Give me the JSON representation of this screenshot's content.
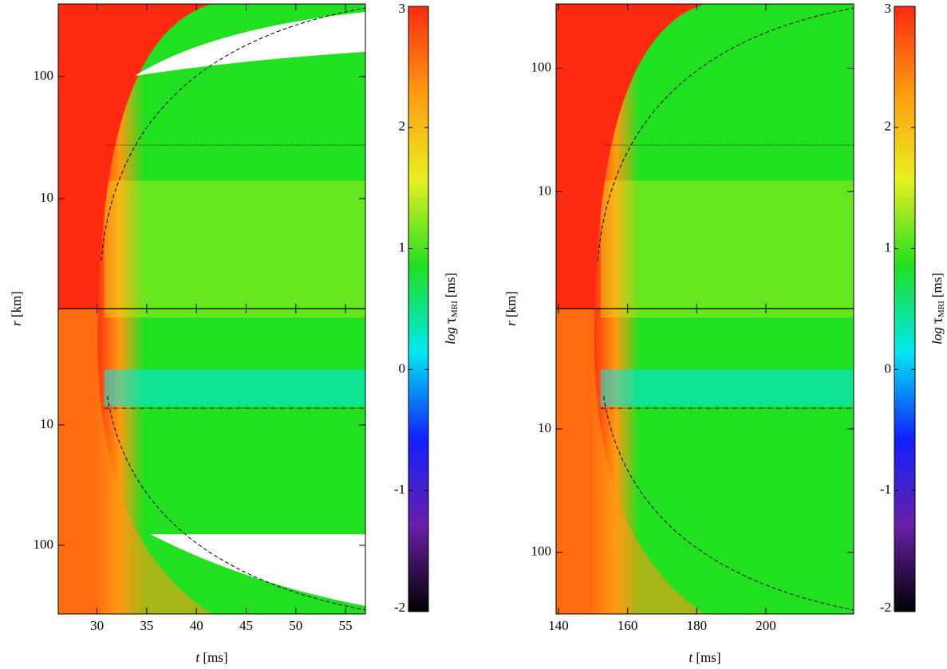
{
  "chart_data": [
    {
      "type": "heatmap",
      "xlabel": {
        "symbol": "t",
        "unit": "[ms]"
      },
      "ylabel": {
        "symbol": "r",
        "unit": "[km]"
      },
      "xlim": [
        26.1,
        57.0
      ],
      "xticks": [
        30,
        35,
        40,
        45,
        50,
        55
      ],
      "panels": [
        {
          "position": "top",
          "ylim": [
            1.25,
            394
          ],
          "yticks": [
            10,
            100
          ],
          "ylog": true
        },
        {
          "position": "bottom",
          "ylim": [
            1.08,
            372
          ],
          "yticks": [
            10,
            100
          ],
          "ylog": true
        }
      ],
      "colorbar": {
        "label": {
          "prefix": "log",
          "symbol": "τ",
          "subscript": "MRI",
          "unit": "[ms]"
        },
        "clim": [
          -2,
          3
        ],
        "ticks": [
          -2,
          -1,
          0,
          1,
          2,
          3
        ],
        "colors": [
          "#000000",
          "#6a1fa8",
          "#1020ff",
          "#00e8f0",
          "#20e020",
          "#e8f020",
          "#ff9a10",
          "#ff2a10"
        ]
      }
    },
    {
      "type": "heatmap",
      "xlabel": {
        "symbol": "t",
        "unit": "[ms]"
      },
      "ylabel": {
        "symbol": "r",
        "unit": "[km]"
      },
      "xlim": [
        139.3,
        225.4
      ],
      "xticks": [
        140,
        160,
        180,
        200
      ],
      "panels": [
        {
          "position": "top",
          "ylim": [
            1.13,
            331
          ],
          "yticks": [
            10,
            100
          ],
          "ylog": true
        },
        {
          "position": "bottom",
          "ylim": [
            1.06,
            316
          ],
          "yticks": [
            10,
            100
          ],
          "ylog": true
        }
      ],
      "colorbar": {
        "label": {
          "prefix": "log",
          "symbol": "τ",
          "subscript": "MRI",
          "unit": "[ms]"
        },
        "clim": [
          -2,
          3
        ],
        "ticks": [
          -2,
          -1,
          0,
          1,
          2,
          3
        ],
        "colors": [
          "#000000",
          "#6a1fa8",
          "#1020ff",
          "#00e8f0",
          "#20e020",
          "#e8f020",
          "#ff9a10",
          "#ff2a10"
        ]
      }
    }
  ]
}
